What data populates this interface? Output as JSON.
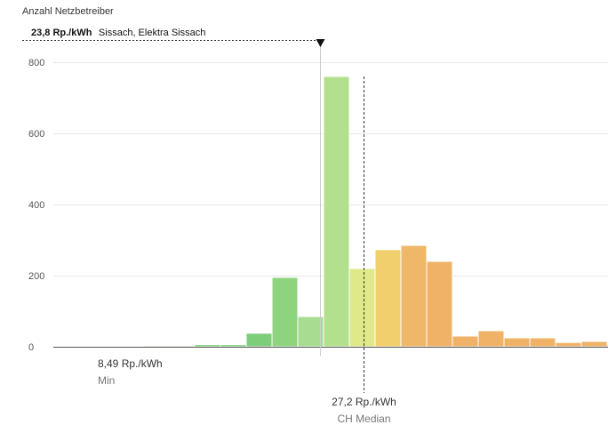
{
  "chart_data": {
    "type": "bar",
    "ylabel": "Anzahl Netzbetreiber",
    "ylim": [
      0,
      800
    ],
    "yticks": [
      "0",
      "200",
      "400",
      "600",
      "800"
    ],
    "grid": true,
    "bins": [
      {
        "value": 1,
        "color": "#8ed081"
      },
      {
        "value": 2,
        "color": "#8ed081"
      },
      {
        "value": 3,
        "color": "#83cf7c"
      },
      {
        "value": 3,
        "color": "#83cf7c"
      },
      {
        "value": 6,
        "color": "#7fcf78"
      },
      {
        "value": 6,
        "color": "#7fcf78"
      },
      {
        "value": 38,
        "color": "#7dcd7a"
      },
      {
        "value": 195,
        "color": "#8ed47f"
      },
      {
        "value": 85,
        "color": "#a8dc90"
      },
      {
        "value": 760,
        "color": "#b2e08c"
      },
      {
        "value": 220,
        "color": "#dfe98a"
      },
      {
        "value": 273,
        "color": "#f0cf6c"
      },
      {
        "value": 285,
        "color": "#efb768"
      },
      {
        "value": 240,
        "color": "#efb267"
      },
      {
        "value": 30,
        "color": "#efb267"
      },
      {
        "value": 45,
        "color": "#efb267"
      },
      {
        "value": 25,
        "color": "#efb267"
      },
      {
        "value": 25,
        "color": "#efb267"
      },
      {
        "value": 12,
        "color": "#efb267"
      },
      {
        "value": 15,
        "color": "#efb267"
      },
      {
        "value": 7,
        "color": "#efb267"
      }
    ],
    "selected": {
      "value_label": "23,8 Rp./kWh",
      "name": "Sissach, Elektra Sissach",
      "bin_index": 9
    },
    "min": {
      "value": "8,49 Rp./kWh",
      "label": "Min"
    },
    "median": {
      "value": "27,2 Rp./kWh",
      "label": "CH Median",
      "bin_index": 11
    }
  }
}
